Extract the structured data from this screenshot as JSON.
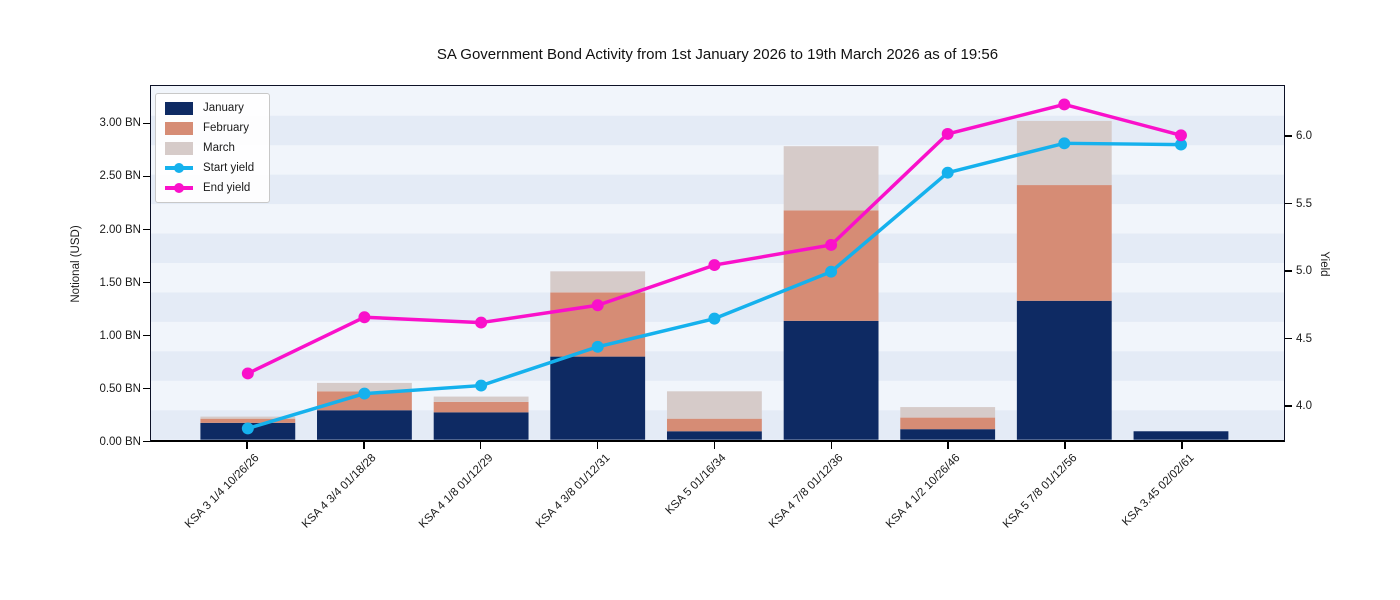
{
  "chart_title": "SA Government Bond Activity from 1st January 2026 to 19th March 2026 as of 19:56",
  "left_axis": {
    "label": "Notional (USD)",
    "tick_labels": [
      "0.00 BN",
      "0.50 BN",
      "1.00 BN",
      "1.50 BN",
      "2.00 BN",
      "2.50 BN",
      "3.00 BN"
    ],
    "tick_values": [
      0,
      0.5,
      1.0,
      1.5,
      2.0,
      2.5,
      3.0
    ]
  },
  "right_axis": {
    "label": "Yield",
    "tick_labels": [
      "4.0",
      "4.5",
      "5.0",
      "5.5",
      "6.0"
    ],
    "tick_values": [
      4.0,
      4.5,
      5.0,
      5.5,
      6.0
    ]
  },
  "chart_data": {
    "type": "combo: stacked bar (left axis) + line with markers (right axis)",
    "title": "SA Government Bond Activity from 1st January 2026 to 19th March 2026 as of 19:56",
    "xlabel": "",
    "ylabel_left": "Notional (USD)",
    "ylabel_right": "Yield",
    "left_ylim": [
      0,
      3.36
    ],
    "right_ylim": [
      3.74,
      6.38
    ],
    "legend_position": "upper left",
    "background_style": "alternating horizontal bands",
    "categories": [
      "KSA 3 1/4 10/26/26",
      "KSA 4 3/4 01/18/28",
      "KSA 4 1/8 01/12/29",
      "KSA 4 3/8 01/12/31",
      "KSA 5 01/16/34",
      "KSA 4 7/8 01/12/36",
      "KSA 4 1/2 10/26/46",
      "KSA 5 7/8 01/12/56",
      "KSA 3.45 02/02/61"
    ],
    "bar_series": [
      {
        "name": "January",
        "color": "#0e2a63",
        "values": [
          0.16,
          0.28,
          0.26,
          0.79,
          0.08,
          1.13,
          0.1,
          1.32,
          0.08
        ]
      },
      {
        "name": "February",
        "color": "#d68c75",
        "values": [
          0.04,
          0.18,
          0.1,
          0.61,
          0.12,
          1.05,
          0.11,
          1.1,
          0.0
        ]
      },
      {
        "name": "March",
        "color": "#d6cbc9",
        "values": [
          0.02,
          0.08,
          0.05,
          0.2,
          0.26,
          0.61,
          0.1,
          0.61,
          0.0
        ]
      }
    ],
    "line_series": [
      {
        "name": "Start yield",
        "color": "#15b1ed",
        "marker": "circle",
        "axis": "right",
        "values": [
          3.82,
          4.08,
          4.14,
          4.43,
          4.64,
          4.99,
          5.73,
          5.95,
          5.94
        ]
      },
      {
        "name": "End yield",
        "color": "#fa10ca",
        "marker": "circle",
        "axis": "right",
        "values": [
          4.23,
          4.65,
          4.61,
          4.74,
          5.04,
          5.19,
          6.02,
          6.24,
          6.01
        ]
      }
    ],
    "band_colors": {
      "light": "#f1f5fb",
      "dark": "#e4ebf6"
    }
  }
}
